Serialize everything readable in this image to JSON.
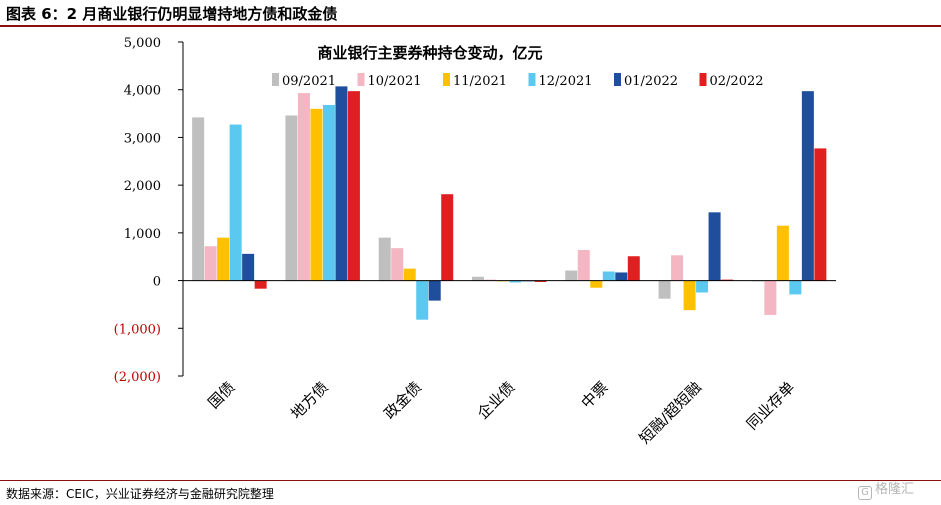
{
  "figure_title": "图表 6：2 月商业银行仍明显增持地方债和政金债",
  "source_note": "数据来源：CEIC，兴业证券经济与金融研究院整理",
  "watermark": {
    "icon_char": "G",
    "text": "格隆汇"
  },
  "colors": {
    "rule": "#8a0f0f",
    "negative_tick": "#c00000",
    "series": [
      "#bfbfbf",
      "#f4b6c2",
      "#ffc000",
      "#5bc8f0",
      "#1f4e9c",
      "#e02020"
    ]
  },
  "chart_data": {
    "type": "bar",
    "title": "商业银行主要券种持仓变动，亿元",
    "xlabel": "",
    "ylabel": "",
    "ylim": [
      -2000,
      5000
    ],
    "yticks": [
      5000,
      4000,
      3000,
      2000,
      1000,
      0,
      -1000,
      -2000
    ],
    "ytick_labels": [
      "5,000",
      "4,000",
      "3,000",
      "2,000",
      "1,000",
      "0",
      "(1,000)",
      "(2,000)"
    ],
    "grid": false,
    "legend_position": "top",
    "categories": [
      "国债",
      "地方债",
      "政金债",
      "企业债",
      "中票",
      "短融/超短融",
      "同业存单"
    ],
    "series": [
      {
        "name": "09/2021",
        "values": [
          3420,
          3460,
          900,
          80,
          210,
          -380,
          0
        ]
      },
      {
        "name": "10/2021",
        "values": [
          720,
          3930,
          680,
          20,
          640,
          530,
          -720
        ]
      },
      {
        "name": "11/2021",
        "values": [
          900,
          3600,
          250,
          -10,
          -150,
          -620,
          1150
        ]
      },
      {
        "name": "12/2021",
        "values": [
          3270,
          3680,
          -820,
          -40,
          190,
          -250,
          -290
        ]
      },
      {
        "name": "01/2022",
        "values": [
          560,
          4070,
          -420,
          -10,
          170,
          1430,
          3970
        ]
      },
      {
        "name": "02/2022",
        "values": [
          -170,
          3970,
          1810,
          -30,
          510,
          20,
          2770
        ]
      }
    ]
  }
}
